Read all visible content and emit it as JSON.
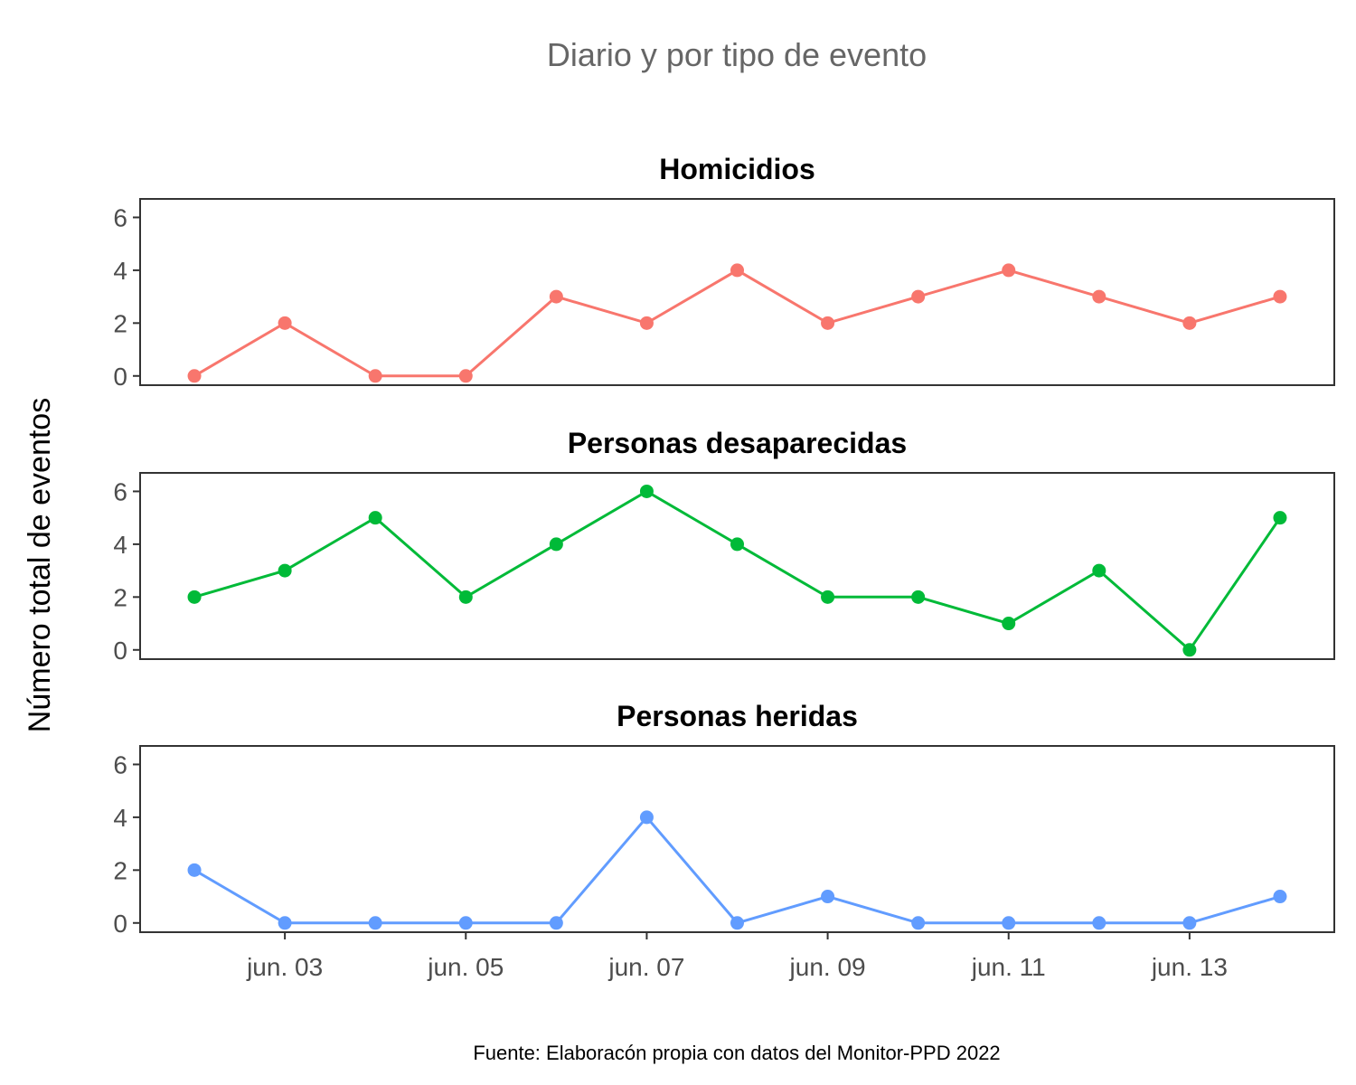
{
  "chart_data": {
    "type": "line",
    "title": "Diario y por tipo de evento",
    "ylabel": "Número total de eventos",
    "caption": "Fuente: Elaboracón propia con datos del Monitor-PPD 2022",
    "x": [
      "2022-06-02",
      "2022-06-03",
      "2022-06-04",
      "2022-06-05",
      "2022-06-06",
      "2022-06-07",
      "2022-06-08",
      "2022-06-09",
      "2022-06-10",
      "2022-06-11",
      "2022-06-12",
      "2022-06-13",
      "2022-06-14"
    ],
    "x_ticks": [
      "jun. 03",
      "jun. 05",
      "jun. 07",
      "jun. 09",
      "jun. 11",
      "jun. 13"
    ],
    "x_tick_dates": [
      "2022-06-03",
      "2022-06-05",
      "2022-06-07",
      "2022-06-09",
      "2022-06-11",
      "2022-06-13"
    ],
    "ylim": [
      0,
      6
    ],
    "y_ticks": [
      "0",
      "2",
      "4",
      "6"
    ],
    "grid": false,
    "legend": "none",
    "panels": [
      {
        "name": "Homicidios",
        "color": "#F8766D",
        "values": [
          0,
          2,
          0,
          0,
          3,
          2,
          4,
          2,
          3,
          4,
          3,
          2,
          3
        ]
      },
      {
        "name": "Personas desaparecidas",
        "color": "#00BA38",
        "values": [
          2,
          3,
          5,
          2,
          4,
          6,
          4,
          2,
          2,
          1,
          3,
          0,
          5
        ]
      },
      {
        "name": "Personas heridas",
        "color": "#619CFF",
        "values": [
          2,
          0,
          0,
          0,
          0,
          4,
          0,
          1,
          0,
          0,
          0,
          0,
          1
        ]
      }
    ]
  }
}
